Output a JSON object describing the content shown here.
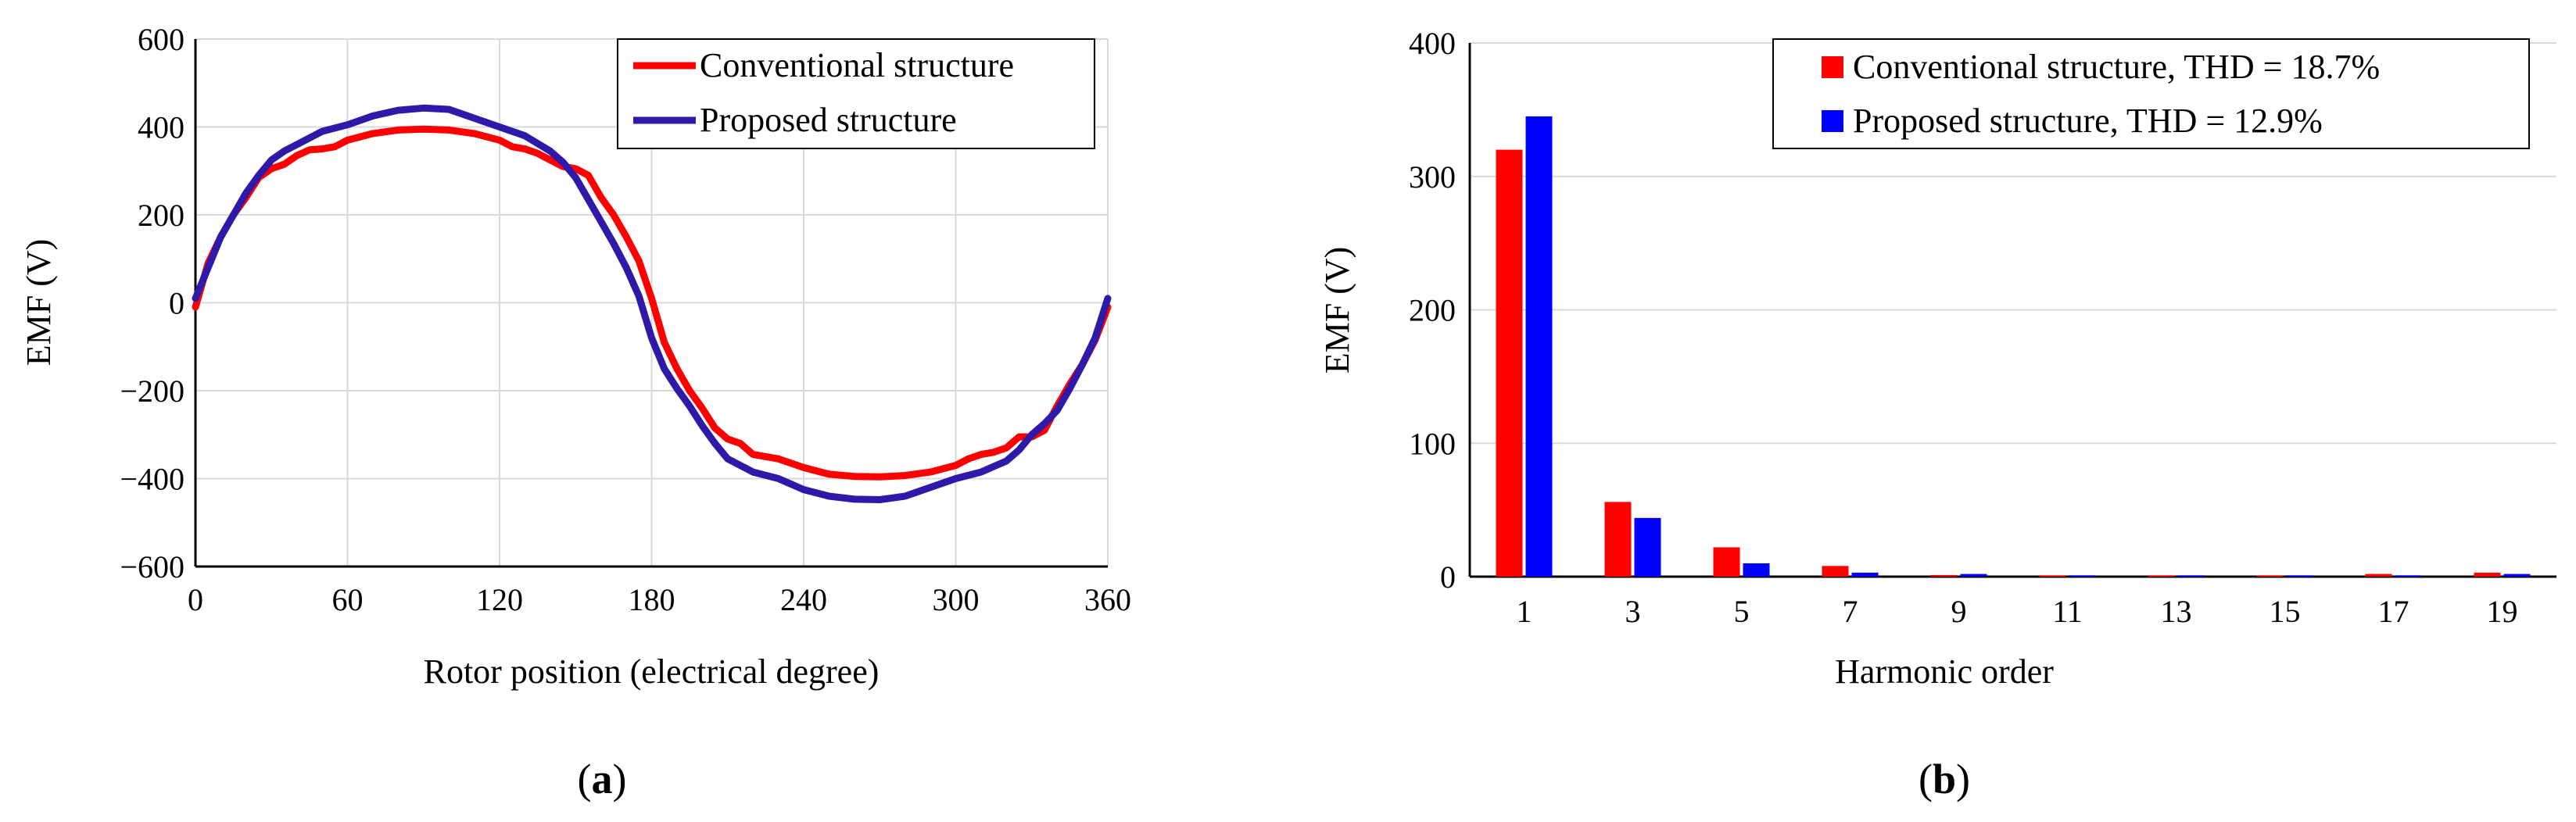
{
  "chart_data": [
    {
      "type": "line",
      "panel_label": "a",
      "xlabel": "Rotor position (electrical degree)",
      "ylabel": "EMF (V)",
      "xlim": [
        0,
        360
      ],
      "ylim": [
        -600,
        600
      ],
      "xticks": [
        0,
        60,
        120,
        180,
        240,
        300,
        360
      ],
      "yticks": [
        -600,
        -400,
        -200,
        0,
        200,
        400,
        600
      ],
      "ytick_labels": [
        "−600",
        "−400",
        "−200",
        "0",
        "200",
        "400",
        "600"
      ],
      "grid": true,
      "legend_position": "top-right",
      "series": [
        {
          "name": "Conventional structure",
          "color": "#ff0000",
          "x": [
            0,
            5,
            10,
            15,
            20,
            25,
            30,
            35,
            40,
            45,
            50,
            55,
            60,
            70,
            80,
            90,
            100,
            110,
            120,
            125,
            130,
            135,
            140,
            145,
            150,
            155,
            160,
            165,
            170,
            175,
            180,
            185,
            190,
            195,
            200,
            205,
            210,
            215,
            220,
            225,
            230,
            240,
            250,
            260,
            270,
            280,
            290,
            300,
            305,
            310,
            315,
            320,
            325,
            330,
            335,
            340,
            345,
            350,
            355,
            360
          ],
          "y": [
            -10,
            90,
            150,
            200,
            240,
            285,
            305,
            315,
            335,
            348,
            350,
            355,
            370,
            385,
            393,
            395,
            393,
            385,
            370,
            355,
            350,
            340,
            325,
            310,
            305,
            290,
            240,
            200,
            150,
            95,
            10,
            -90,
            -150,
            -200,
            -240,
            -285,
            -310,
            -320,
            -345,
            -350,
            -355,
            -375,
            -390,
            -395,
            -396,
            -393,
            -385,
            -370,
            -355,
            -345,
            -340,
            -330,
            -305,
            -305,
            -290,
            -235,
            -185,
            -140,
            -85,
            -10
          ]
        },
        {
          "name": "Proposed structure",
          "color": "#2e1aa8",
          "x": [
            0,
            5,
            10,
            15,
            20,
            25,
            30,
            35,
            40,
            50,
            60,
            70,
            80,
            90,
            100,
            110,
            120,
            130,
            140,
            145,
            150,
            155,
            160,
            165,
            170,
            175,
            180,
            185,
            190,
            195,
            200,
            205,
            210,
            215,
            220,
            230,
            240,
            250,
            260,
            270,
            280,
            290,
            300,
            310,
            320,
            325,
            330,
            335,
            340,
            345,
            350,
            355,
            360
          ],
          "y": [
            10,
            80,
            150,
            200,
            250,
            290,
            325,
            345,
            360,
            390,
            405,
            425,
            438,
            443,
            440,
            420,
            400,
            380,
            345,
            320,
            285,
            235,
            185,
            135,
            80,
            15,
            -80,
            -150,
            -195,
            -235,
            -280,
            -320,
            -355,
            -370,
            -385,
            -400,
            -425,
            -440,
            -447,
            -448,
            -440,
            -420,
            -400,
            -385,
            -360,
            -335,
            -300,
            -275,
            -245,
            -195,
            -140,
            -80,
            10
          ]
        }
      ]
    },
    {
      "type": "bar",
      "panel_label": "b",
      "xlabel": "Harmonic order",
      "ylabel": "EMF (V)",
      "ylim": [
        0,
        400
      ],
      "yticks": [
        0,
        100,
        200,
        300,
        400
      ],
      "categories": [
        "1",
        "3",
        "5",
        "7",
        "9",
        "11",
        "13",
        "15",
        "17",
        "19"
      ],
      "grid": true,
      "legend_position": "top-right",
      "series": [
        {
          "name": "Conventional structure, THD = 18.7%",
          "color": "#ff0000",
          "values": [
            320,
            56,
            22,
            8,
            1.2,
            1,
            1,
            1,
            2,
            3
          ]
        },
        {
          "name": "Proposed structure, THD = 12.9%",
          "color": "#0000ff",
          "values": [
            345,
            44,
            10,
            3,
            2,
            1,
            1,
            1,
            1,
            2
          ]
        }
      ]
    }
  ]
}
